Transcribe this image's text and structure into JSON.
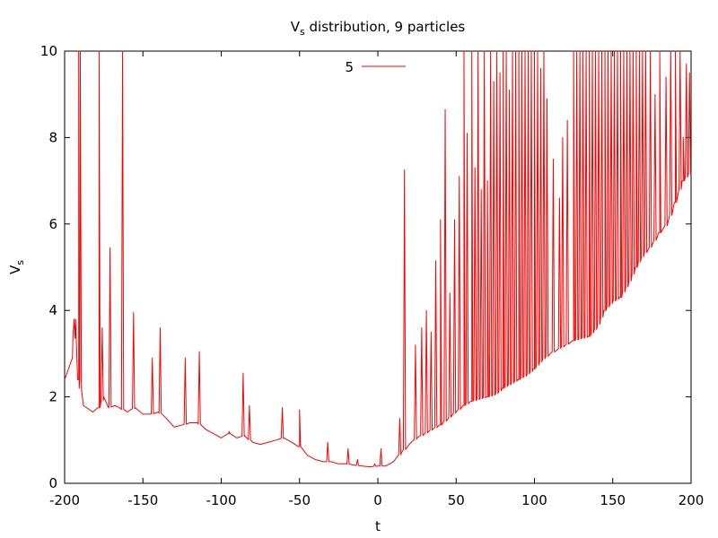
{
  "chart_data": {
    "type": "line",
    "title_main": "V",
    "title_sub": "s",
    "title_rest": " distribution, 9 particles",
    "xlabel": "t",
    "ylabel_main": "V",
    "ylabel_sub": "s",
    "xlim": [
      -200,
      200
    ],
    "ylim": [
      0,
      10
    ],
    "xticks": [
      -200,
      -150,
      -100,
      -50,
      0,
      50,
      100,
      150,
      200
    ],
    "xtick_labels": [
      "-200",
      "-150",
      "-100",
      "-50",
      "0",
      "50",
      "100",
      "150",
      "200"
    ],
    "yticks": [
      0,
      2,
      4,
      6,
      8,
      10
    ],
    "ytick_labels": [
      "0",
      "2",
      "4",
      "6",
      "8",
      "10"
    ],
    "grid": false,
    "legend_position": "top-center",
    "series": [
      {
        "name": "5",
        "color": "#ff0000",
        "baseline": [
          [
            -200,
            2.4
          ],
          [
            -197,
            2.7
          ],
          [
            -195,
            2.9
          ],
          [
            -193,
            3.8
          ],
          [
            -191,
            2.4
          ],
          [
            -188,
            1.8
          ],
          [
            -182,
            1.65
          ],
          [
            -178,
            1.75
          ],
          [
            -175,
            2.0
          ],
          [
            -172,
            1.75
          ],
          [
            -168,
            1.8
          ],
          [
            -165,
            1.75
          ],
          [
            -160,
            1.65
          ],
          [
            -155,
            1.75
          ],
          [
            -150,
            1.6
          ],
          [
            -145,
            1.6
          ],
          [
            -140,
            1.65
          ],
          [
            -135,
            1.5
          ],
          [
            -130,
            1.3
          ],
          [
            -125,
            1.35
          ],
          [
            -120,
            1.4
          ],
          [
            -115,
            1.4
          ],
          [
            -110,
            1.25
          ],
          [
            -105,
            1.15
          ],
          [
            -100,
            1.05
          ],
          [
            -95,
            1.15
          ],
          [
            -90,
            1.05
          ],
          [
            -85,
            1.1
          ],
          [
            -80,
            0.95
          ],
          [
            -75,
            0.9
          ],
          [
            -70,
            0.95
          ],
          [
            -65,
            1.0
          ],
          [
            -60,
            1.05
          ],
          [
            -55,
            0.95
          ],
          [
            -50,
            0.85
          ],
          [
            -45,
            0.65
          ],
          [
            -40,
            0.55
          ],
          [
            -35,
            0.5
          ],
          [
            -30,
            0.5
          ],
          [
            -25,
            0.45
          ],
          [
            -20,
            0.45
          ],
          [
            -15,
            0.42
          ],
          [
            -10,
            0.4
          ],
          [
            -5,
            0.38
          ],
          [
            0,
            0.4
          ],
          [
            5,
            0.4
          ],
          [
            10,
            0.5
          ],
          [
            15,
            0.7
          ],
          [
            20,
            0.9
          ],
          [
            25,
            1.05
          ],
          [
            30,
            1.15
          ],
          [
            35,
            1.25
          ],
          [
            40,
            1.35
          ],
          [
            45,
            1.5
          ],
          [
            50,
            1.65
          ],
          [
            55,
            1.8
          ],
          [
            60,
            1.9
          ],
          [
            65,
            1.95
          ],
          [
            70,
            2.0
          ],
          [
            75,
            2.05
          ],
          [
            80,
            2.2
          ],
          [
            85,
            2.3
          ],
          [
            90,
            2.4
          ],
          [
            95,
            2.5
          ],
          [
            100,
            2.65
          ],
          [
            105,
            2.85
          ],
          [
            110,
            3.0
          ],
          [
            115,
            3.1
          ],
          [
            120,
            3.2
          ],
          [
            125,
            3.3
          ],
          [
            130,
            3.35
          ],
          [
            135,
            3.4
          ],
          [
            140,
            3.6
          ],
          [
            145,
            4.0
          ],
          [
            150,
            4.2
          ],
          [
            155,
            4.3
          ],
          [
            160,
            4.6
          ],
          [
            165,
            5.0
          ],
          [
            170,
            5.3
          ],
          [
            175,
            5.5
          ],
          [
            180,
            5.8
          ],
          [
            185,
            6.0
          ],
          [
            190,
            6.5
          ],
          [
            195,
            7.0
          ],
          [
            200,
            7.2
          ]
        ],
        "spikes": [
          [
            -194,
            3.8
          ],
          [
            -191,
            10
          ],
          [
            -190,
            10
          ],
          [
            -178,
            10
          ],
          [
            -176,
            3.6
          ],
          [
            -171,
            5.45
          ],
          [
            -163,
            10
          ],
          [
            -156,
            3.95
          ],
          [
            -144,
            2.9
          ],
          [
            -139,
            3.6
          ],
          [
            -123,
            2.9
          ],
          [
            -114,
            3.05
          ],
          [
            -95,
            1.2
          ],
          [
            -86,
            2.55
          ],
          [
            -82,
            1.8
          ],
          [
            -61,
            1.75
          ],
          [
            -50,
            1.7
          ],
          [
            -32,
            0.95
          ],
          [
            -19,
            0.8
          ],
          [
            -13,
            0.55
          ],
          [
            -2,
            0.45
          ],
          [
            2,
            0.8
          ],
          [
            14,
            1.5
          ],
          [
            17,
            7.25
          ],
          [
            24,
            3.2
          ],
          [
            28,
            3.6
          ],
          [
            31,
            4.0
          ],
          [
            34,
            3.5
          ],
          [
            37,
            5.15
          ],
          [
            40,
            6.1
          ],
          [
            43,
            8.65
          ],
          [
            46,
            4.4
          ],
          [
            49,
            6.1
          ],
          [
            52,
            7.1
          ],
          [
            55,
            10
          ],
          [
            57,
            8.1
          ],
          [
            60,
            10
          ],
          [
            62,
            7.3
          ],
          [
            64,
            10
          ],
          [
            66,
            6.8
          ],
          [
            68,
            10
          ],
          [
            70,
            7.0
          ],
          [
            72,
            10
          ],
          [
            74,
            9.3
          ],
          [
            76,
            10
          ],
          [
            78,
            9.5
          ],
          [
            80,
            10
          ],
          [
            82,
            10
          ],
          [
            84,
            9.1
          ],
          [
            86,
            10
          ],
          [
            88,
            10
          ],
          [
            90,
            10
          ],
          [
            92,
            10
          ],
          [
            94,
            10
          ],
          [
            96,
            10
          ],
          [
            98,
            10
          ],
          [
            100,
            10
          ],
          [
            102,
            10
          ],
          [
            104,
            9.6
          ],
          [
            106,
            10
          ],
          [
            108,
            8.9
          ],
          [
            112,
            7.5
          ],
          [
            116,
            6.6
          ],
          [
            118,
            8.0
          ],
          [
            121,
            8.4
          ],
          [
            125,
            10
          ],
          [
            127,
            10
          ],
          [
            129,
            10
          ],
          [
            131,
            10
          ],
          [
            133,
            10
          ],
          [
            135,
            10
          ],
          [
            137,
            10
          ],
          [
            139,
            10
          ],
          [
            141,
            10
          ],
          [
            143,
            10
          ],
          [
            145,
            10
          ],
          [
            147,
            10
          ],
          [
            149,
            10
          ],
          [
            151,
            10
          ],
          [
            153,
            10
          ],
          [
            155,
            10
          ],
          [
            157,
            10
          ],
          [
            159,
            10
          ],
          [
            161,
            10
          ],
          [
            163,
            10
          ],
          [
            165,
            10
          ],
          [
            167,
            10
          ],
          [
            169,
            10
          ],
          [
            171,
            10
          ],
          [
            174,
            10
          ],
          [
            177,
            9.0
          ],
          [
            180,
            10
          ],
          [
            184,
            9.4
          ],
          [
            187,
            10
          ],
          [
            190,
            10
          ],
          [
            193,
            10
          ],
          [
            195,
            8.0
          ],
          [
            197,
            9.7
          ],
          [
            199,
            9.5
          ]
        ]
      }
    ]
  }
}
